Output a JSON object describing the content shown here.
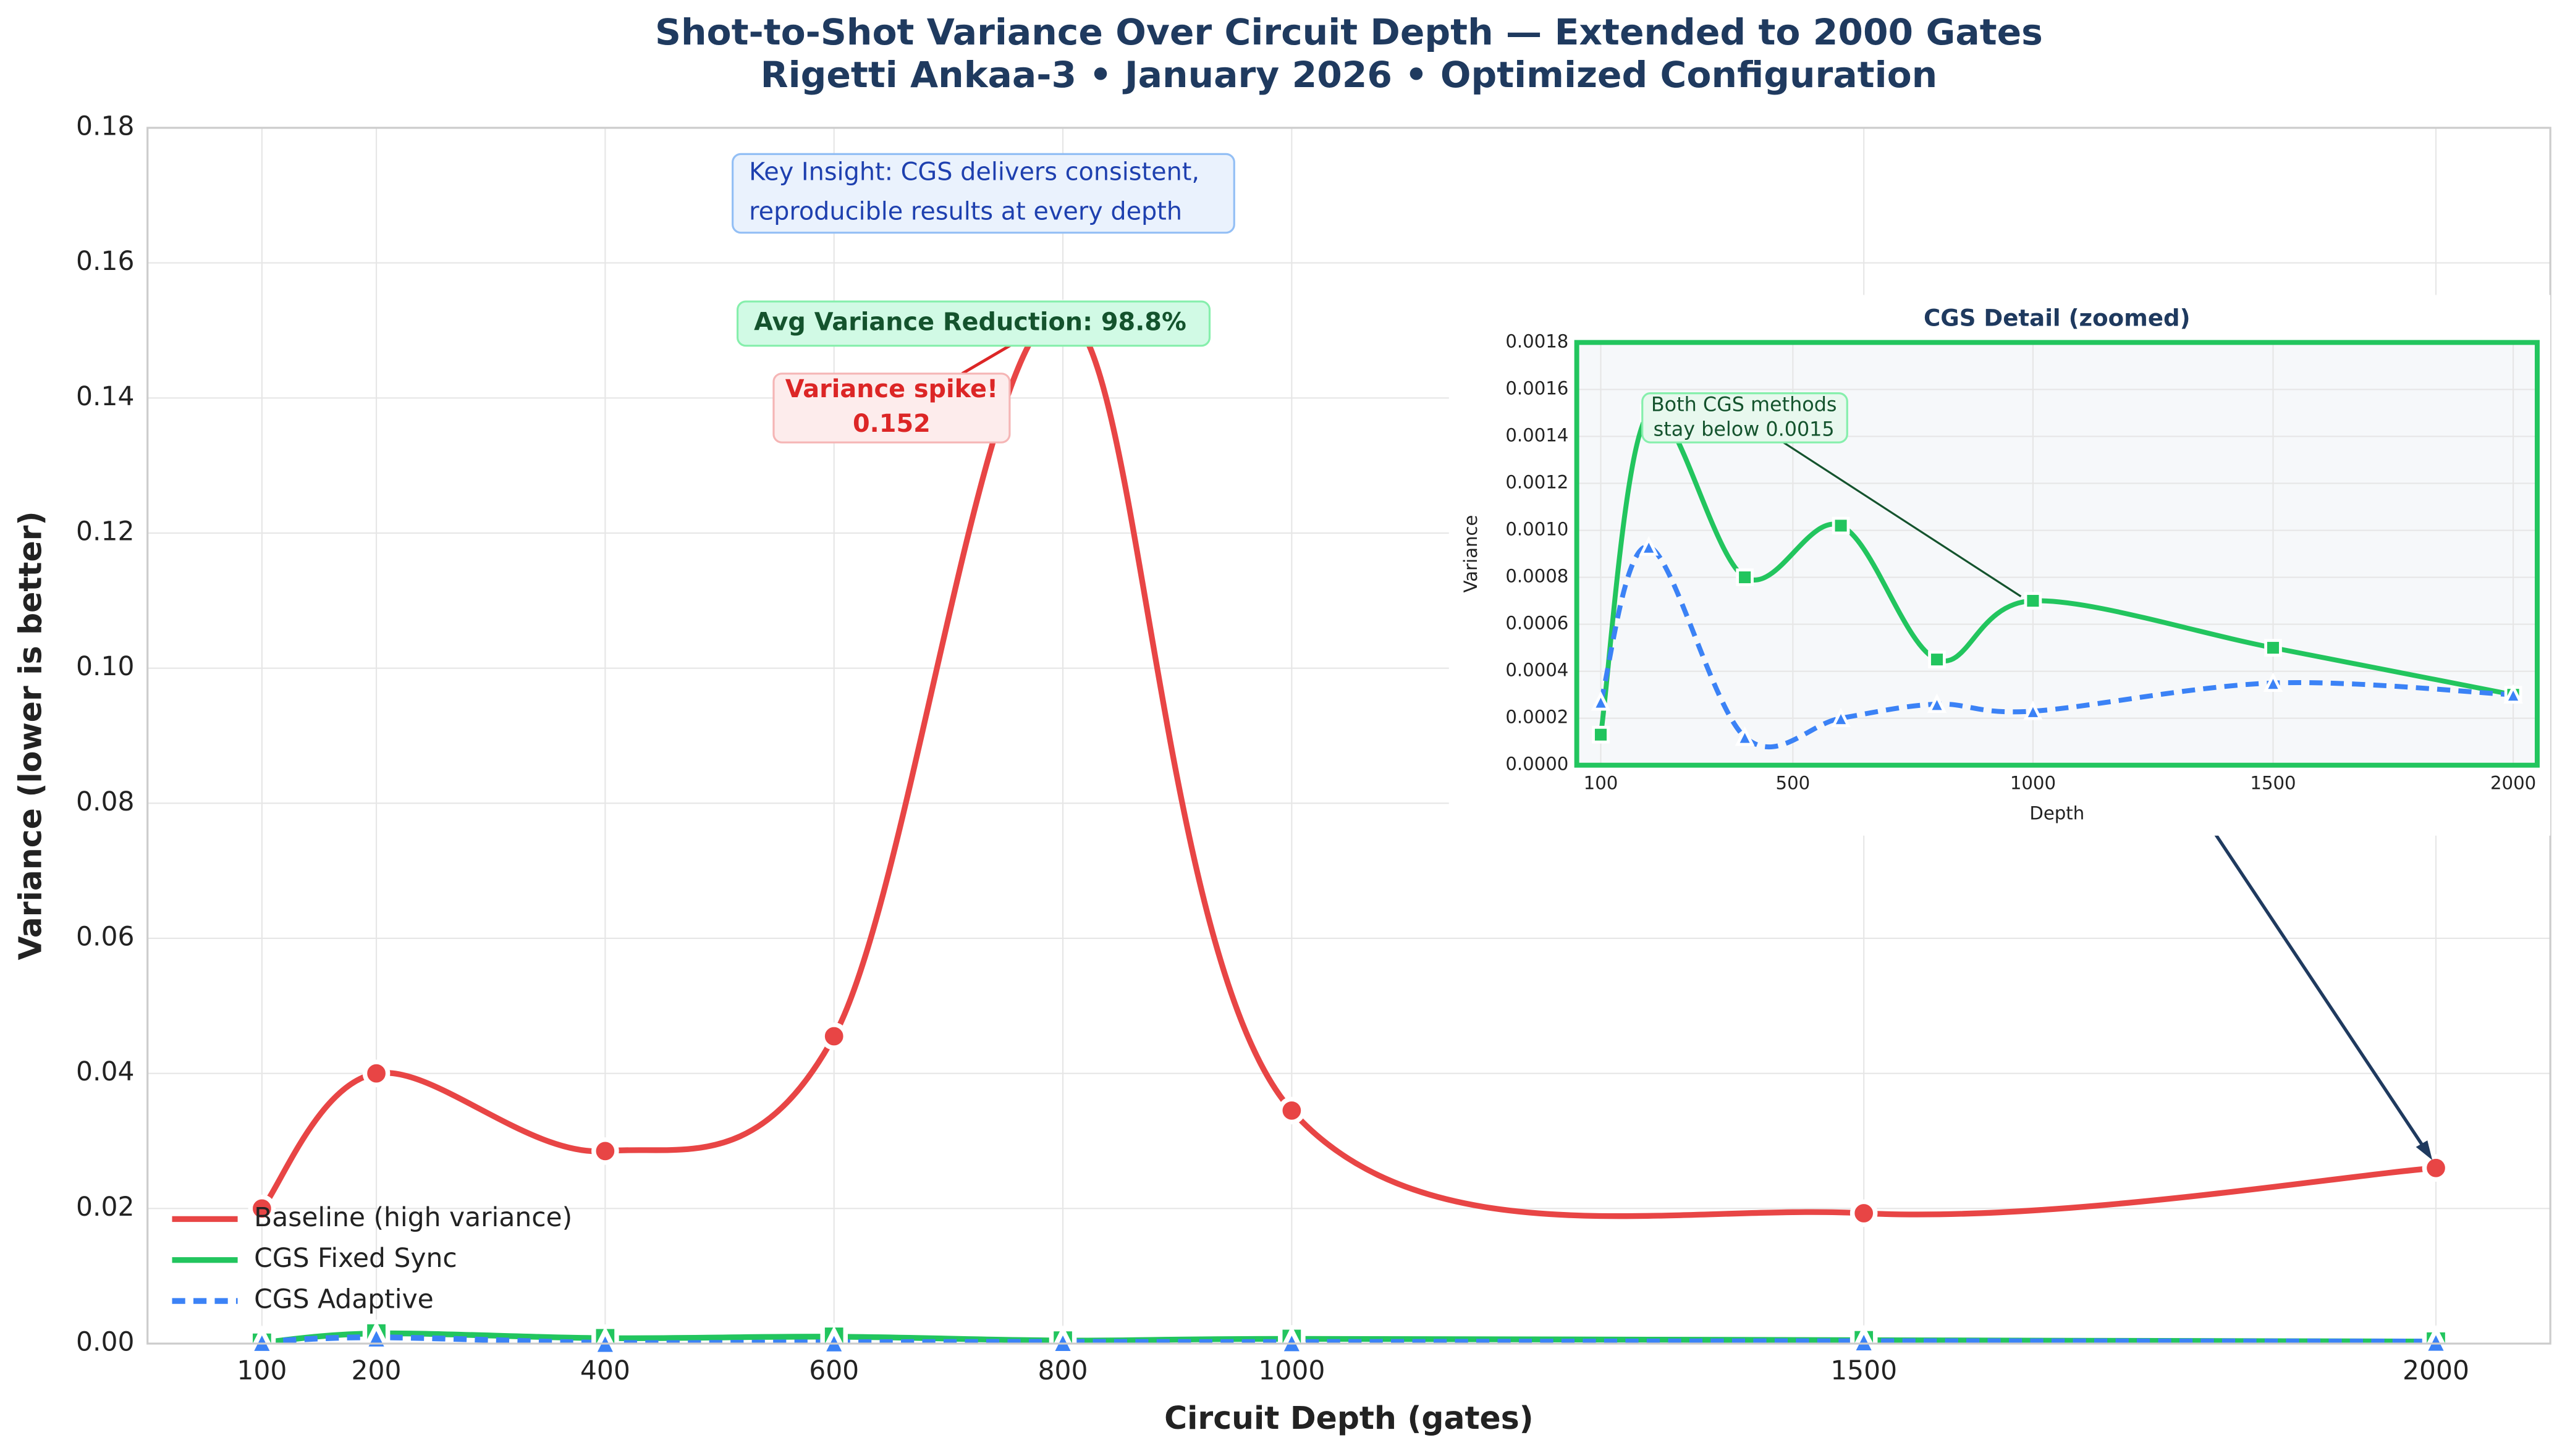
{
  "chart_data": [
    {
      "type": "line",
      "title": [
        "Shot-to-Shot Variance Over Circuit Depth — Extended to 2000 Gates",
        "Rigetti Ankaa-3 • January 2026 • Optimized Configuration"
      ],
      "xlabel": "Circuit Depth (gates)",
      "ylabel": "Variance (lower is better)",
      "x": [
        100,
        200,
        400,
        600,
        800,
        1000,
        1500,
        2000
      ],
      "xlim": [
        0,
        2100
      ],
      "xticks": [
        100,
        200,
        400,
        600,
        800,
        1000,
        1500,
        2000
      ],
      "ylim": [
        0,
        0.18
      ],
      "yticks": [
        {
          "value": 0,
          "label": "0.00"
        },
        {
          "value": 0.02,
          "label": "0.02"
        },
        {
          "value": 0.04,
          "label": "0.04"
        },
        {
          "value": 0.06,
          "label": "0.06"
        },
        {
          "value": 0.08,
          "label": "0.08"
        },
        {
          "value": 0.1,
          "label": "0.10"
        },
        {
          "value": 0.12,
          "label": "0.12"
        },
        {
          "value": 0.14,
          "label": "0.14"
        },
        {
          "value": 0.16,
          "label": "0.16"
        },
        {
          "value": 0.18,
          "label": "0.18"
        }
      ],
      "grid": true,
      "legend": "lower left",
      "series": [
        {
          "name": "Baseline (high variance)",
          "color": "#e84545",
          "marker": "circle",
          "dash": false,
          "values": [
            0.02,
            0.04,
            0.0285,
            0.0455,
            0.1525,
            0.0345,
            0.0193,
            0.026
          ]
        },
        {
          "name": "CGS Fixed Sync",
          "color": "#22c55e",
          "marker": "square",
          "dash": false,
          "values": [
            0.00013,
            0.0015,
            0.0008,
            0.00102,
            0.00045,
            0.0007,
            0.0005,
            0.0003
          ]
        },
        {
          "name": "CGS Adaptive",
          "color": "#3b82f6",
          "marker": "triangle",
          "dash": true,
          "values": [
            0.00027,
            0.00093,
            0.00012,
            0.0002,
            0.00026,
            0.00023,
            0.00035,
            0.0003
          ]
        }
      ],
      "annotations": [
        {
          "lines": [
            "Key Insight: CGS delivers consistent,",
            "reproducible results at every depth"
          ]
        },
        {
          "lines": [
            "Avg Variance Reduction: 98.8%"
          ]
        },
        {
          "lines": [
            "Variance spike!",
            "0.152"
          ]
        }
      ]
    },
    {
      "type": "line",
      "title": "CGS Detail (zoomed)",
      "xlabel": "Depth",
      "ylabel": "Variance",
      "xlim": [
        50,
        2050
      ],
      "xticks": [
        100,
        500,
        1000,
        1500,
        2000
      ],
      "ylim": [
        0,
        0.0018
      ],
      "yticks": [
        {
          "value": 0,
          "label": "0.0000"
        },
        {
          "value": 0.0002,
          "label": "0.0002"
        },
        {
          "value": 0.0004,
          "label": "0.0004"
        },
        {
          "value": 0.0006,
          "label": "0.0006"
        },
        {
          "value": 0.0008,
          "label": "0.0008"
        },
        {
          "value": 0.001,
          "label": "0.0010"
        },
        {
          "value": 0.0012,
          "label": "0.0012"
        },
        {
          "value": 0.0014,
          "label": "0.0014"
        },
        {
          "value": 0.0016,
          "label": "0.0016"
        },
        {
          "value": 0.0018,
          "label": "0.0018"
        }
      ],
      "grid": true,
      "annotation": {
        "lines": [
          "Both CGS methods",
          "stay below 0.0015"
        ]
      }
    }
  ]
}
